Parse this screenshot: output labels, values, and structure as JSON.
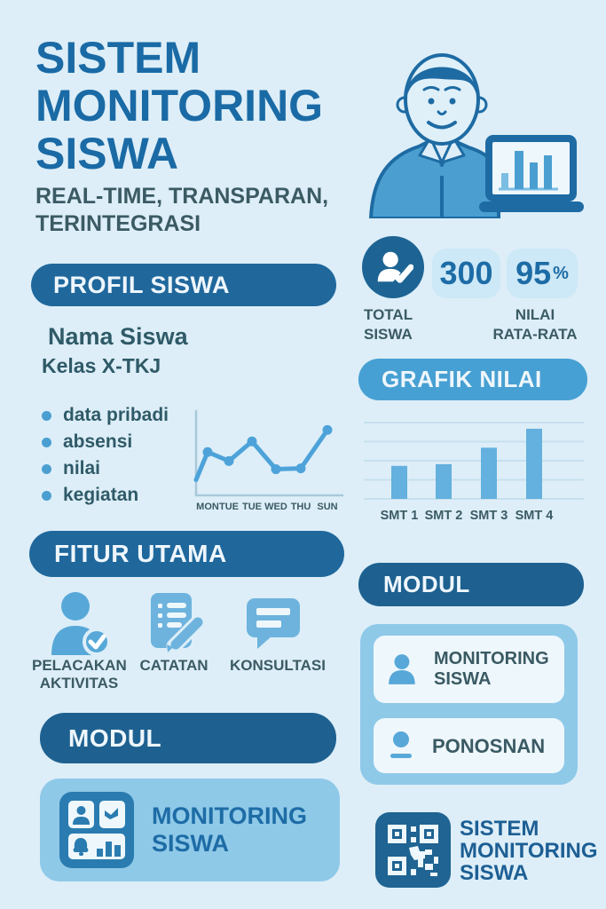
{
  "colors": {
    "background": "#ddeef8",
    "banner_dark": "#20689c",
    "banner_navy": "#1e6190",
    "banner_medium": "#47a0d3",
    "stat_circle": "#1d6494",
    "pill_bg": "#cde8f6",
    "accent_blue": "#4a9fd0",
    "card_medium_blue": "#8fc9e8",
    "card_light": "#eef7fc",
    "title_blue": "#1a6aa5",
    "number_blue": "#1d6ca6",
    "text_teal": "#3b5a64"
  },
  "header": {
    "title_lines": [
      "SISTEM",
      "MONITORING",
      "SISWA"
    ],
    "subtitle_lines": [
      "REAL-TIME, TRANSPARAN,",
      "TERINTEGRASI"
    ]
  },
  "illustration": {
    "icon": "student-with-laptop-illustration",
    "laptop_bar_heights": [
      30,
      72,
      50,
      63
    ]
  },
  "stats": {
    "total": {
      "icon": "user-check-badge-icon",
      "value": "300",
      "label_lines": [
        "TOTAL",
        "SISWA"
      ]
    },
    "average": {
      "value": "95",
      "unit": "%",
      "label_lines": [
        "NILAI",
        "RATA-RATA"
      ]
    }
  },
  "profil": {
    "heading": "PROFIL SISWA",
    "name": "Nama Siswa",
    "kelas": "Kelas X-TKJ",
    "bullets": [
      "data pribadi",
      "absensi",
      "nilai",
      "kegiatan"
    ]
  },
  "grafik": {
    "heading": "GRAFIK NILAI"
  },
  "fitur": {
    "heading": "FITUR UTAMA",
    "items": [
      {
        "icon": "user-check-icon",
        "label_lines": [
          "PELACAKAN",
          "AKTIVITAS"
        ]
      },
      {
        "icon": "note-pencil-icon",
        "label_lines": [
          "CATATAN"
        ]
      },
      {
        "icon": "chat-bubble-icon",
        "label_lines": [
          "KONSULTASI"
        ]
      }
    ]
  },
  "modul_left": {
    "heading": "MODUL",
    "card": {
      "icon": "dashboard-grid-icon",
      "label_lines": [
        "MONITORING",
        "SISWA"
      ]
    }
  },
  "modul_right": {
    "heading": "MODUL",
    "items": [
      {
        "icon": "user-icon",
        "label_lines": [
          "MONITORING",
          "SISWA"
        ]
      },
      {
        "icon": "user-icon",
        "label_lines": [
          "PONOSNAN"
        ]
      }
    ]
  },
  "footer": {
    "qr_icon": "qr-code-icon",
    "label_lines": [
      "SISTEM",
      "MONITORING",
      "SISWA"
    ]
  },
  "chart_data": [
    {
      "id": "weekly_activity",
      "type": "line",
      "x": [
        "MON",
        "TUE",
        "TUE",
        "WED",
        "THU",
        "SUN"
      ],
      "values": [
        53,
        42,
        66,
        32,
        33,
        80
      ],
      "starts_at_origin_value": 19,
      "title": "",
      "xlabel": "",
      "ylabel": "",
      "yaxis_labeled": false,
      "grid": false,
      "line_color": "#4da3d9",
      "axis_color": "#a7c9da"
    },
    {
      "id": "grafik_nilai_per_semester",
      "type": "bar",
      "categories": [
        "SMT 1",
        "SMT 2",
        "SMT 3",
        "SMT 4"
      ],
      "values": [
        40,
        42,
        62,
        85
      ],
      "title": "GRAFIK NILAI",
      "xlabel": "",
      "ylabel": "",
      "ylim": [
        0,
        100
      ],
      "yaxis_labeled": false,
      "grid": true,
      "gridline_count": 5,
      "bar_color": "#64b0de",
      "grid_color": "#c6e0ee"
    }
  ]
}
